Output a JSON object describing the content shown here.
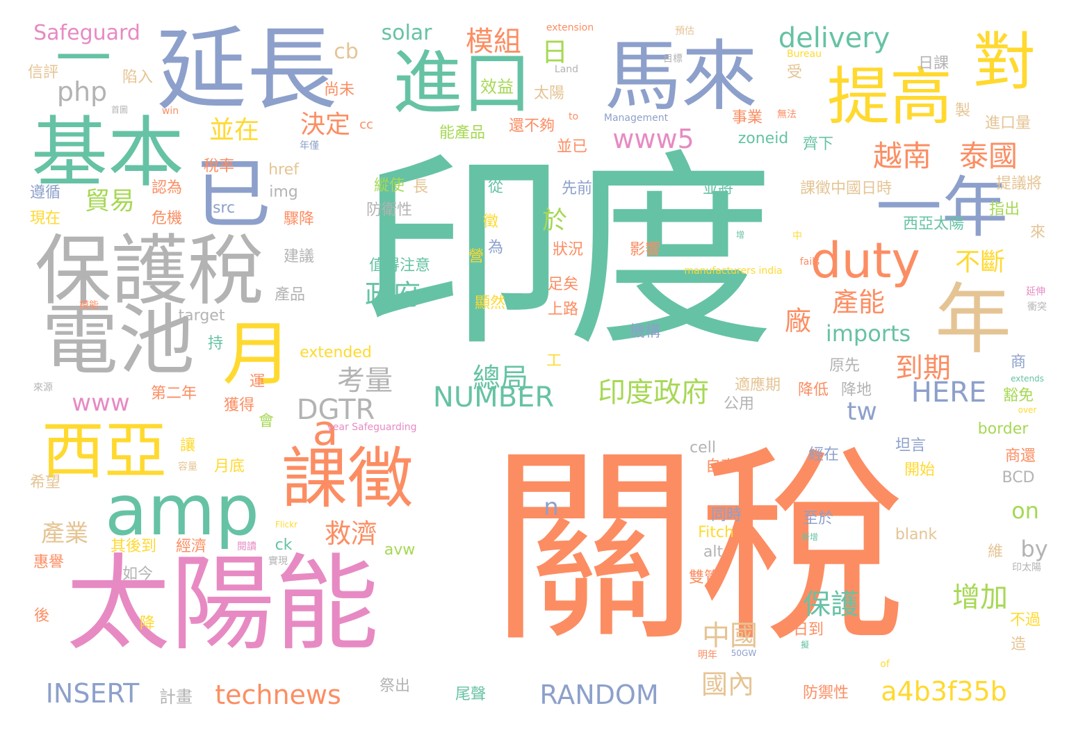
{
  "palette": {
    "teal": "#66c2a5",
    "orange": "#fc8d62",
    "blue": "#8da0cb",
    "pink": "#e78ac3",
    "green": "#a6d854",
    "yellow": "#ffd92f",
    "tan": "#e5c494",
    "gray": "#b3b3b3"
  },
  "words": [
    {
      "text": "印度",
      "weight": 1.0,
      "color": "teal"
    },
    {
      "text": "關稅",
      "weight": 0.98,
      "color": "orange"
    },
    {
      "text": "太陽能",
      "weight": 0.55,
      "color": "pink"
    },
    {
      "text": "延長",
      "weight": 0.45,
      "color": "blue"
    },
    {
      "text": "馬來",
      "weight": 0.42,
      "color": "blue"
    },
    {
      "text": "保護稅",
      "weight": 0.4,
      "color": "gray"
    },
    {
      "text": "基本",
      "weight": 0.4,
      "color": "teal"
    },
    {
      "text": "電池",
      "weight": 0.4,
      "color": "gray"
    },
    {
      "text": "進口",
      "weight": 0.4,
      "color": "teal"
    },
    {
      "text": "提高",
      "weight": 0.36,
      "color": "yellow"
    },
    {
      "text": "對",
      "weight": 0.36,
      "color": "yellow"
    },
    {
      "text": "年",
      "weight": 0.4,
      "color": "tan"
    },
    {
      "text": "一年",
      "weight": 0.36,
      "color": "blue"
    },
    {
      "text": "已",
      "weight": 0.4,
      "color": "blue"
    },
    {
      "text": "一",
      "weight": 0.3,
      "color": "teal"
    },
    {
      "text": "西亞",
      "weight": 0.3,
      "color": "yellow"
    },
    {
      "text": "課徵",
      "weight": 0.32,
      "color": "orange"
    },
    {
      "text": "月",
      "weight": 0.34,
      "color": "yellow"
    },
    {
      "text": "amp",
      "weight": 0.32,
      "color": "teal"
    },
    {
      "text": "a",
      "weight": 0.2,
      "color": "orange"
    },
    {
      "text": "duty",
      "weight": 0.24,
      "color": "orange"
    },
    {
      "text": "Safeguard",
      "weight": 0.06,
      "color": "pink"
    },
    {
      "text": "cb",
      "weight": 0.06,
      "color": "tan"
    },
    {
      "text": "solar",
      "weight": 0.06,
      "color": "teal"
    },
    {
      "text": "模組",
      "weight": 0.08,
      "color": "orange"
    },
    {
      "text": "delivery",
      "weight": 0.09,
      "color": "teal"
    },
    {
      "text": "日",
      "weight": 0.07,
      "color": "green"
    },
    {
      "text": "php",
      "weight": 0.07,
      "color": "gray"
    },
    {
      "text": "效益",
      "weight": 0.05,
      "color": "green"
    },
    {
      "text": "並在",
      "weight": 0.07,
      "color": "yellow"
    },
    {
      "text": "決定",
      "weight": 0.07,
      "color": "orange"
    },
    {
      "text": "www5",
      "weight": 0.08,
      "color": "pink"
    },
    {
      "text": "越南",
      "weight": 0.09,
      "color": "orange"
    },
    {
      "text": "泰國",
      "weight": 0.09,
      "color": "orange"
    },
    {
      "text": "貿易",
      "weight": 0.07,
      "color": "green"
    },
    {
      "text": "於",
      "weight": 0.08,
      "color": "green"
    },
    {
      "text": "政府",
      "weight": 0.09,
      "color": "teal"
    },
    {
      "text": "不斷",
      "weight": 0.07,
      "color": "yellow"
    },
    {
      "text": "產能",
      "weight": 0.08,
      "color": "orange"
    },
    {
      "text": "廠",
      "weight": 0.08,
      "color": "orange"
    },
    {
      "text": "imports",
      "weight": 0.07,
      "color": "teal"
    },
    {
      "text": "考量",
      "weight": 0.08,
      "color": "gray"
    },
    {
      "text": "總局",
      "weight": 0.08,
      "color": "teal"
    },
    {
      "text": "到期",
      "weight": 0.08,
      "color": "orange"
    },
    {
      "text": "印度政府",
      "weight": 0.1,
      "color": "green"
    },
    {
      "text": "NUMBER",
      "weight": 0.09,
      "color": "teal"
    },
    {
      "text": "HERE",
      "weight": 0.09,
      "color": "blue"
    },
    {
      "text": "www",
      "weight": 0.08,
      "color": "pink"
    },
    {
      "text": "DGTR",
      "weight": 0.09,
      "color": "gray"
    },
    {
      "text": "tw",
      "weight": 0.08,
      "color": "blue"
    },
    {
      "text": "n",
      "weight": 0.08,
      "color": "blue"
    },
    {
      "text": "產業",
      "weight": 0.08,
      "color": "tan"
    },
    {
      "text": "救濟",
      "weight": 0.08,
      "color": "orange"
    },
    {
      "text": "保護",
      "weight": 0.08,
      "color": "teal"
    },
    {
      "text": "增加",
      "weight": 0.08,
      "color": "green"
    },
    {
      "text": "on",
      "weight": 0.07,
      "color": "green"
    },
    {
      "text": "by",
      "weight": 0.07,
      "color": "gray"
    },
    {
      "text": "中國",
      "weight": 0.09,
      "color": "tan"
    },
    {
      "text": "國內",
      "weight": 0.08,
      "color": "tan"
    },
    {
      "text": "INSERT",
      "weight": 0.09,
      "color": "blue"
    },
    {
      "text": "technews",
      "weight": 0.09,
      "color": "orange"
    },
    {
      "text": "RANDOM",
      "weight": 0.09,
      "color": "blue"
    },
    {
      "text": "a4b3f35b",
      "weight": 0.09,
      "color": "yellow"
    },
    {
      "text": "計畫",
      "weight": 0.05,
      "color": "gray"
    },
    {
      "text": "extension",
      "weight": 0.03,
      "color": "orange"
    },
    {
      "text": "預估",
      "weight": 0.03,
      "color": "tan"
    },
    {
      "text": "日課",
      "weight": 0.04,
      "color": "gray"
    },
    {
      "text": "Bureau",
      "weight": 0.03,
      "color": "yellow"
    },
    {
      "text": "目標",
      "weight": 0.03,
      "color": "gray"
    },
    {
      "text": "Land",
      "weight": 0.03,
      "color": "gray"
    },
    {
      "text": "信評",
      "weight": 0.04,
      "color": "tan"
    },
    {
      "text": "陷入",
      "weight": 0.04,
      "color": "tan"
    },
    {
      "text": "尚未",
      "weight": 0.04,
      "color": "orange"
    },
    {
      "text": "太陽",
      "weight": 0.04,
      "color": "tan"
    },
    {
      "text": "受",
      "weight": 0.04,
      "color": "tan"
    },
    {
      "text": "首圖",
      "weight": 0.03,
      "color": "gray"
    },
    {
      "text": "win",
      "weight": 0.03,
      "color": "orange"
    },
    {
      "text": "cc",
      "weight": 0.04,
      "color": "orange"
    },
    {
      "text": "能產品",
      "weight": 0.05,
      "color": "green"
    },
    {
      "text": "還不夠",
      "weight": 0.05,
      "color": "orange"
    },
    {
      "text": "to",
      "weight": 0.03,
      "color": "orange"
    },
    {
      "text": "Management",
      "weight": 0.03,
      "color": "blue"
    },
    {
      "text": "事業",
      "weight": 0.04,
      "color": "orange"
    },
    {
      "text": "無法",
      "weight": 0.03,
      "color": "orange"
    },
    {
      "text": "製",
      "weight": 0.04,
      "color": "tan"
    },
    {
      "text": "進口量",
      "weight": 0.05,
      "color": "tan"
    },
    {
      "text": "年僅",
      "weight": 0.03,
      "color": "blue"
    },
    {
      "text": "並已",
      "weight": 0.04,
      "color": "orange"
    },
    {
      "text": "zoneid",
      "weight": 0.05,
      "color": "teal"
    },
    {
      "text": "齊下",
      "weight": 0.04,
      "color": "teal"
    },
    {
      "text": "稅率",
      "weight": 0.04,
      "color": "orange"
    },
    {
      "text": "href",
      "weight": 0.05,
      "color": "tan"
    },
    {
      "text": "縱使",
      "weight": 0.04,
      "color": "green"
    },
    {
      "text": "長",
      "weight": 0.04,
      "color": "tan"
    },
    {
      "text": "從",
      "weight": 0.04,
      "color": "teal"
    },
    {
      "text": "先前",
      "weight": 0.04,
      "color": "blue"
    },
    {
      "text": "並將",
      "weight": 0.04,
      "color": "teal"
    },
    {
      "text": "課徵中國日時",
      "weight": 0.05,
      "color": "tan"
    },
    {
      "text": "提議將",
      "weight": 0.04,
      "color": "tan"
    },
    {
      "text": "遵循",
      "weight": 0.04,
      "color": "blue"
    },
    {
      "text": "認為",
      "weight": 0.04,
      "color": "orange"
    },
    {
      "text": "img",
      "weight": 0.05,
      "color": "gray"
    },
    {
      "text": "src",
      "weight": 0.04,
      "color": "blue"
    },
    {
      "text": "現在",
      "weight": 0.04,
      "color": "yellow"
    },
    {
      "text": "危機",
      "weight": 0.04,
      "color": "orange"
    },
    {
      "text": "驟降",
      "weight": 0.04,
      "color": "orange"
    },
    {
      "text": "防衛性",
      "weight": 0.05,
      "color": "gray"
    },
    {
      "text": "指出",
      "weight": 0.04,
      "color": "green"
    },
    {
      "text": "徵",
      "weight": 0.04,
      "color": "yellow"
    },
    {
      "text": "西亞太陽",
      "weight": 0.05,
      "color": "teal"
    },
    {
      "text": "來",
      "weight": 0.04,
      "color": "tan"
    },
    {
      "text": "增",
      "weight": 0.02,
      "color": "teal"
    },
    {
      "text": "中",
      "weight": 0.03,
      "color": "yellow"
    },
    {
      "text": "為",
      "weight": 0.04,
      "color": "blue"
    },
    {
      "text": "建議",
      "weight": 0.04,
      "color": "gray"
    },
    {
      "text": "值得注意",
      "weight": 0.05,
      "color": "teal"
    },
    {
      "text": "營",
      "weight": 0.04,
      "color": "yellow"
    },
    {
      "text": "狀況",
      "weight": 0.04,
      "color": "orange"
    },
    {
      "text": "影響",
      "weight": 0.04,
      "color": "orange"
    },
    {
      "text": "manufacturers india",
      "weight": 0.03,
      "color": "yellow"
    },
    {
      "text": "fails",
      "weight": 0.03,
      "color": "orange"
    },
    {
      "text": "產品",
      "weight": 0.04,
      "color": "gray"
    },
    {
      "text": "顯然",
      "weight": 0.04,
      "color": "yellow"
    },
    {
      "text": "足矣",
      "weight": 0.04,
      "color": "orange"
    },
    {
      "text": "上路",
      "weight": 0.04,
      "color": "orange"
    },
    {
      "text": "延伸",
      "weight": 0.03,
      "color": "pink"
    },
    {
      "text": "衝突",
      "weight": 0.03,
      "color": "gray"
    },
    {
      "text": "模能",
      "weight": 0.02,
      "color": "orange"
    },
    {
      "text": "target",
      "weight": 0.05,
      "color": "gray"
    },
    {
      "text": "機構",
      "weight": 0.04,
      "color": "blue"
    },
    {
      "text": "持",
      "weight": 0.04,
      "color": "teal"
    },
    {
      "text": "extended",
      "weight": 0.05,
      "color": "yellow"
    },
    {
      "text": "工",
      "weight": 0.04,
      "color": "yellow"
    },
    {
      "text": "原先",
      "weight": 0.04,
      "color": "gray"
    },
    {
      "text": "商",
      "weight": 0.04,
      "color": "blue"
    },
    {
      "text": "來源",
      "weight": 0.03,
      "color": "gray"
    },
    {
      "text": "運",
      "weight": 0.04,
      "color": "orange"
    },
    {
      "text": "適應期",
      "weight": 0.04,
      "color": "tan"
    },
    {
      "text": "降低",
      "weight": 0.04,
      "color": "orange"
    },
    {
      "text": "降地",
      "weight": 0.04,
      "color": "gray"
    },
    {
      "text": "extends",
      "weight": 0.02,
      "color": "teal"
    },
    {
      "text": "第二年",
      "weight": 0.04,
      "color": "orange"
    },
    {
      "text": "獲得",
      "weight": 0.04,
      "color": "orange"
    },
    {
      "text": "公用",
      "weight": 0.04,
      "color": "gray"
    },
    {
      "text": "豁免",
      "weight": 0.04,
      "color": "green"
    },
    {
      "text": "year Safeguarding",
      "weight": 0.03,
      "color": "pink"
    },
    {
      "text": "over",
      "weight": 0.03,
      "color": "yellow"
    },
    {
      "text": "會",
      "weight": 0.04,
      "color": "green"
    },
    {
      "text": "border",
      "weight": 0.05,
      "color": "green"
    },
    {
      "text": "讓",
      "weight": 0.04,
      "color": "yellow"
    },
    {
      "text": "cell",
      "weight": 0.05,
      "color": "gray"
    },
    {
      "text": "坦言",
      "weight": 0.04,
      "color": "blue"
    },
    {
      "text": "經在",
      "weight": 0.04,
      "color": "blue"
    },
    {
      "text": "商還",
      "weight": 0.04,
      "color": "orange"
    },
    {
      "text": "容量",
      "weight": 0.02,
      "color": "tan"
    },
    {
      "text": "月底",
      "weight": 0.04,
      "color": "yellow"
    },
    {
      "text": "自東亞",
      "weight": 0.05,
      "color": "orange"
    },
    {
      "text": "開始",
      "weight": 0.04,
      "color": "yellow"
    },
    {
      "text": "BCD",
      "weight": 0.04,
      "color": "gray"
    },
    {
      "text": "希望",
      "weight": 0.04,
      "color": "tan"
    },
    {
      "text": "Flickr",
      "weight": 0.02,
      "color": "yellow"
    },
    {
      "text": "同時",
      "weight": 0.04,
      "color": "blue"
    },
    {
      "text": "至於",
      "weight": 0.04,
      "color": "blue"
    },
    {
      "text": "其後到",
      "weight": 0.04,
      "color": "yellow"
    },
    {
      "text": "經濟",
      "weight": 0.04,
      "color": "orange"
    },
    {
      "text": "閱讀",
      "weight": 0.02,
      "color": "pink"
    },
    {
      "text": "ck",
      "weight": 0.04,
      "color": "teal"
    },
    {
      "text": "avw",
      "weight": 0.04,
      "color": "green"
    },
    {
      "text": "Fitch",
      "weight": 0.05,
      "color": "yellow"
    },
    {
      "text": "新增",
      "weight": 0.02,
      "color": "teal"
    },
    {
      "text": "blank",
      "weight": 0.05,
      "color": "tan"
    },
    {
      "text": "惠譽",
      "weight": 0.04,
      "color": "orange"
    },
    {
      "text": "實現",
      "weight": 0.02,
      "color": "gray"
    },
    {
      "text": "alt",
      "weight": 0.04,
      "color": "gray"
    },
    {
      "text": "維",
      "weight": 0.04,
      "color": "tan"
    },
    {
      "text": "印太陽",
      "weight": 0.02,
      "color": "gray"
    },
    {
      "text": "如今",
      "weight": 0.04,
      "color": "gray"
    },
    {
      "text": "雙管",
      "weight": 0.04,
      "color": "orange"
    },
    {
      "text": "後",
      "weight": 0.04,
      "color": "orange"
    },
    {
      "text": "降",
      "weight": 0.04,
      "color": "yellow"
    },
    {
      "text": "不過",
      "weight": 0.04,
      "color": "yellow"
    },
    {
      "text": "日到",
      "weight": 0.04,
      "color": "orange"
    },
    {
      "text": "擬",
      "weight": 0.02,
      "color": "teal"
    },
    {
      "text": "造",
      "weight": 0.04,
      "color": "tan"
    },
    {
      "text": "明年",
      "weight": 0.02,
      "color": "orange"
    },
    {
      "text": "50GW",
      "weight": 0.02,
      "color": "blue"
    },
    {
      "text": "of",
      "weight": 0.03,
      "color": "yellow"
    },
    {
      "text": "祭出",
      "weight": 0.04,
      "color": "gray"
    },
    {
      "text": "尾聲",
      "weight": 0.04,
      "color": "teal"
    },
    {
      "text": "防禦性",
      "weight": 0.04,
      "color": "orange"
    }
  ]
}
